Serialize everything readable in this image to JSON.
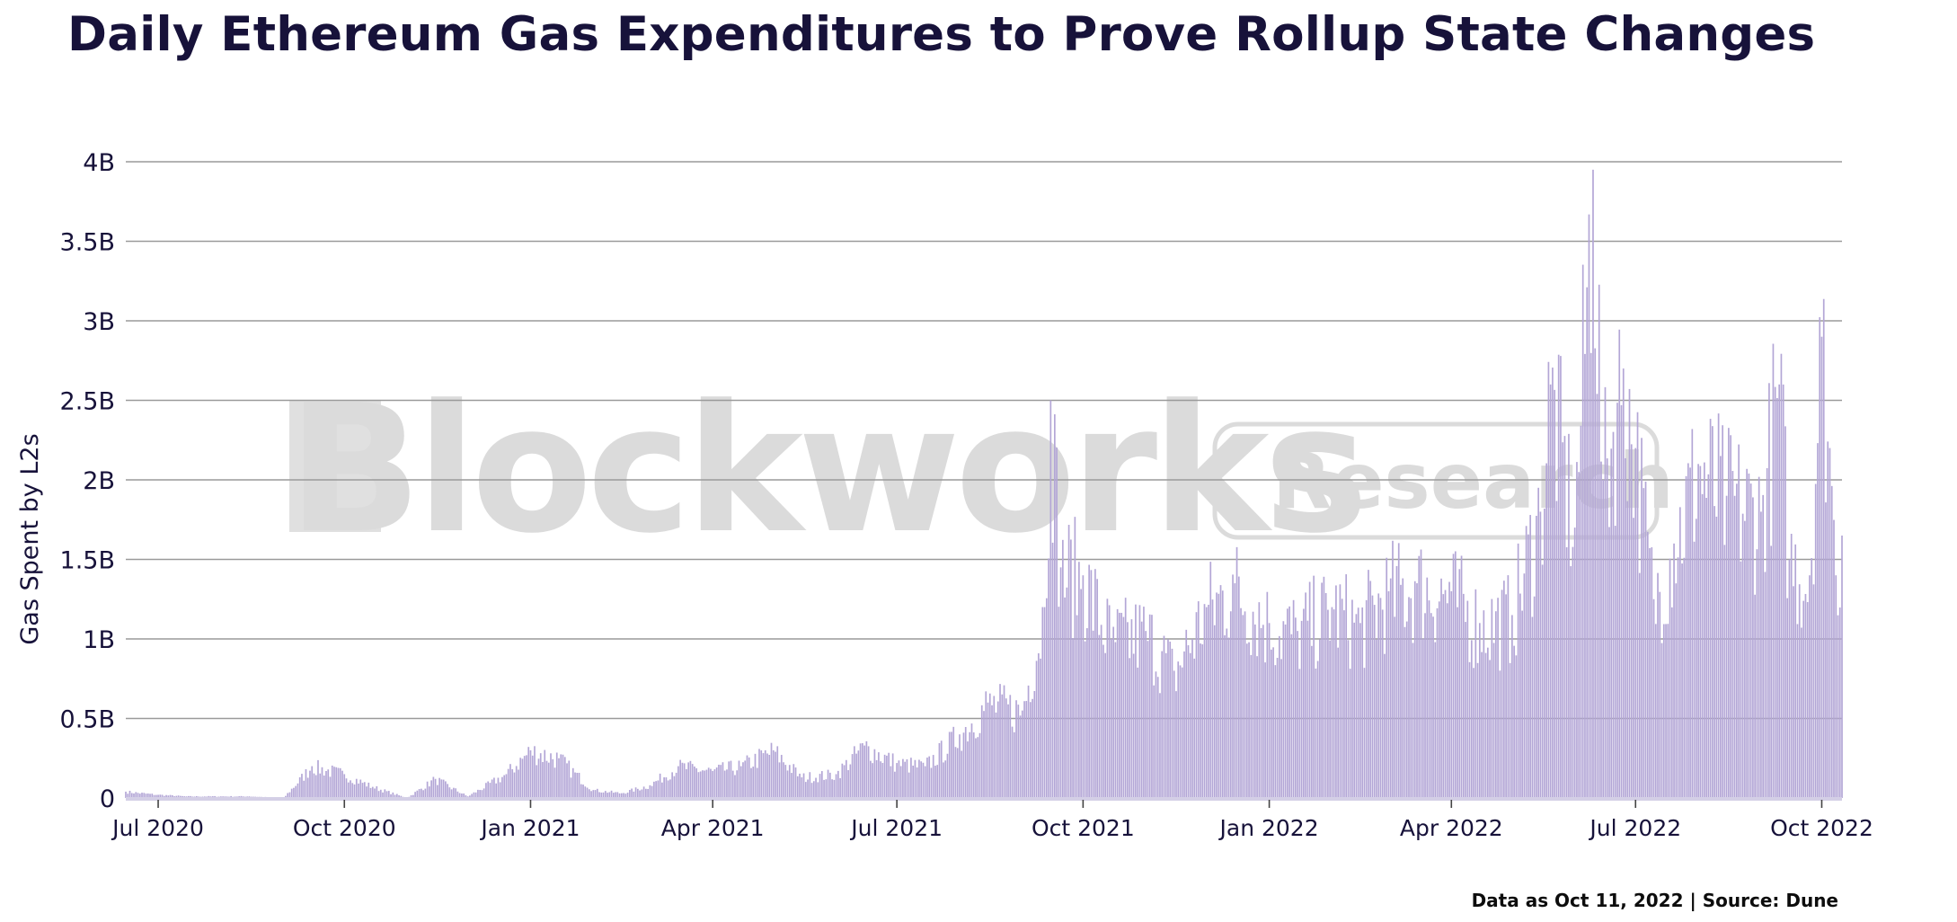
{
  "title": "Daily Ethereum Gas Expenditures to Prove Rollup State Changes",
  "footer": "Data as Oct 11, 2022 | Source: Dune",
  "watermark": {
    "brand": "Blockworks",
    "badge": "Research"
  },
  "colors": {
    "bar": "#b3a6d6",
    "bar_edge": "#9d8cc9",
    "grid": "#9a9a9a",
    "text": "#17123a"
  },
  "chart_data": {
    "type": "bar",
    "ylabel": "Gas Spent by L2s",
    "xlabel": "",
    "ylim": [
      0,
      4000000000
    ],
    "x_range": [
      "2020-06-15",
      "2022-10-11"
    ],
    "grid": true,
    "y_ticks": [
      {
        "value": 0,
        "label": "0"
      },
      {
        "value": 500000000,
        "label": "0.5B"
      },
      {
        "value": 1000000000,
        "label": "1B"
      },
      {
        "value": 1500000000,
        "label": "1.5B"
      },
      {
        "value": 2000000000,
        "label": "2B"
      },
      {
        "value": 2500000000,
        "label": "2.5B"
      },
      {
        "value": 3000000000,
        "label": "3B"
      },
      {
        "value": 3500000000,
        "label": "3.5B"
      },
      {
        "value": 4000000000,
        "label": "4B"
      }
    ],
    "x_ticks": [
      {
        "date": "2020-07-01",
        "label": "Jul 2020"
      },
      {
        "date": "2020-10-01",
        "label": "Oct 2020"
      },
      {
        "date": "2021-01-01",
        "label": "Jan 2021"
      },
      {
        "date": "2021-04-01",
        "label": "Apr 2021"
      },
      {
        "date": "2021-07-01",
        "label": "Jul 2021"
      },
      {
        "date": "2021-10-01",
        "label": "Oct 2021"
      },
      {
        "date": "2022-01-01",
        "label": "Jan 2022"
      },
      {
        "date": "2022-04-01",
        "label": "Apr 2022"
      },
      {
        "date": "2022-07-01",
        "label": "Jul 2022"
      },
      {
        "date": "2022-10-01",
        "label": "Oct 2022"
      }
    ],
    "series": [
      {
        "values": [
          {
            "x": "2020-06-15",
            "y": 0.04
          },
          {
            "x": "2020-07-01",
            "y": 0.02
          },
          {
            "x": "2020-07-15",
            "y": 0.01
          },
          {
            "x": "2020-08-01",
            "y": 0.01
          },
          {
            "x": "2020-08-15",
            "y": 0.01
          },
          {
            "x": "2020-09-01",
            "y": 0.0
          },
          {
            "x": "2020-09-15",
            "y": 0.2
          },
          {
            "x": "2020-10-01",
            "y": 0.15
          },
          {
            "x": "2020-10-15",
            "y": 0.07
          },
          {
            "x": "2020-11-01",
            "y": 0.0
          },
          {
            "x": "2020-11-15",
            "y": 0.12
          },
          {
            "x": "2020-12-01",
            "y": 0.01
          },
          {
            "x": "2020-12-20",
            "y": 0.15
          },
          {
            "x": "2021-01-01",
            "y": 0.3
          },
          {
            "x": "2021-01-15",
            "y": 0.25
          },
          {
            "x": "2021-02-01",
            "y": 0.05
          },
          {
            "x": "2021-02-15",
            "y": 0.03
          },
          {
            "x": "2021-03-01",
            "y": 0.08
          },
          {
            "x": "2021-03-15",
            "y": 0.2
          },
          {
            "x": "2021-04-01",
            "y": 0.17
          },
          {
            "x": "2021-04-15",
            "y": 0.2
          },
          {
            "x": "2021-05-01",
            "y": 0.3
          },
          {
            "x": "2021-05-15",
            "y": 0.13
          },
          {
            "x": "2021-06-01",
            "y": 0.15
          },
          {
            "x": "2021-06-15",
            "y": 0.33
          },
          {
            "x": "2021-07-01",
            "y": 0.22
          },
          {
            "x": "2021-07-15",
            "y": 0.2
          },
          {
            "x": "2021-08-01",
            "y": 0.4
          },
          {
            "x": "2021-08-15",
            "y": 0.6
          },
          {
            "x": "2021-09-01",
            "y": 0.55
          },
          {
            "x": "2021-09-12",
            "y": 1.2
          },
          {
            "x": "2021-09-15",
            "y": 2.5
          },
          {
            "x": "2021-09-20",
            "y": 1.45
          },
          {
            "x": "2021-10-01",
            "y": 1.4
          },
          {
            "x": "2021-10-15",
            "y": 1.0
          },
          {
            "x": "2021-11-01",
            "y": 1.05
          },
          {
            "x": "2021-11-15",
            "y": 0.8
          },
          {
            "x": "2021-12-01",
            "y": 1.2
          },
          {
            "x": "2021-12-15",
            "y": 1.35
          },
          {
            "x": "2022-01-01",
            "y": 1.1
          },
          {
            "x": "2022-01-15",
            "y": 1.05
          },
          {
            "x": "2022-02-01",
            "y": 1.2
          },
          {
            "x": "2022-02-15",
            "y": 1.1
          },
          {
            "x": "2022-03-01",
            "y": 1.3
          },
          {
            "x": "2022-03-15",
            "y": 1.35
          },
          {
            "x": "2022-04-01",
            "y": 1.3
          },
          {
            "x": "2022-04-15",
            "y": 1.1
          },
          {
            "x": "2022-05-01",
            "y": 1.15
          },
          {
            "x": "2022-05-15",
            "y": 1.8
          },
          {
            "x": "2022-05-20",
            "y": 2.6
          },
          {
            "x": "2022-06-01",
            "y": 1.7
          },
          {
            "x": "2022-06-10",
            "y": 3.95
          },
          {
            "x": "2022-06-15",
            "y": 2.0
          },
          {
            "x": "2022-06-25",
            "y": 2.7
          },
          {
            "x": "2022-07-01",
            "y": 2.2
          },
          {
            "x": "2022-07-10",
            "y": 1.25
          },
          {
            "x": "2022-07-20",
            "y": 1.6
          },
          {
            "x": "2022-08-01",
            "y": 2.1
          },
          {
            "x": "2022-08-15",
            "y": 1.9
          },
          {
            "x": "2022-09-01",
            "y": 1.8
          },
          {
            "x": "2022-09-10",
            "y": 2.6
          },
          {
            "x": "2022-09-15",
            "y": 1.5
          },
          {
            "x": "2022-09-25",
            "y": 1.4
          },
          {
            "x": "2022-10-01",
            "y": 2.9
          },
          {
            "x": "2022-10-05",
            "y": 2.2
          },
          {
            "x": "2022-10-08",
            "y": 1.4
          },
          {
            "x": "2022-10-11",
            "y": 1.65
          }
        ],
        "unit": "B"
      }
    ]
  }
}
